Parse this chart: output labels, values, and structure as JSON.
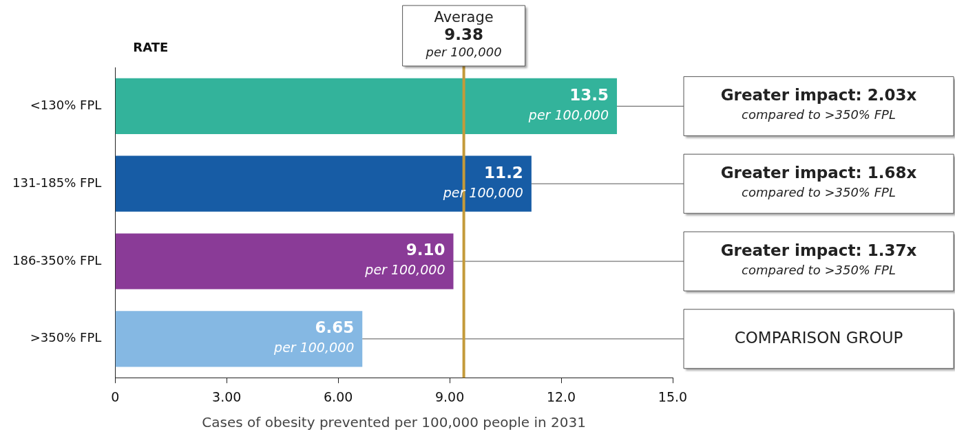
{
  "chart_data": {
    "type": "bar",
    "orientation": "horizontal",
    "ylabel": "RATE",
    "xlabel": "Cases of obesity prevented per 100,000 people in 2031",
    "categories": [
      "<130% FPL",
      "131-185% FPL",
      "186-350% FPL",
      ">350% FPL"
    ],
    "values": [
      13.5,
      11.2,
      9.1,
      6.65
    ],
    "colors": [
      "#33b39b",
      "#175ca5",
      "#8a3b97",
      "#85b8e3"
    ],
    "value_labels": [
      "13.5\nper 100,000",
      "11.2\nper 100,000",
      "9.10\nper 100,000",
      "6.65\nper 100,000"
    ],
    "xlim": [
      0,
      15
    ],
    "xticks": [
      0,
      {
        "value": 3,
        "label": "3.00"
      },
      {
        "value": 6,
        "label": "6.00"
      },
      {
        "value": 9,
        "label": "9.00"
      },
      {
        "value": 12,
        "label": "12.0"
      },
      {
        "value": 15,
        "label": "15.0"
      }
    ],
    "ref_lines": [
      {
        "axis": "x",
        "value": 9.38,
        "label": "Average\n9.38\nper 100,000",
        "color": "#c49a3a"
      }
    ],
    "annotations": [
      "Greater impact: 2.03x\ncompared to >350% FPL",
      "Greater impact: 1.68x\ncompared to >350% FPL",
      "Greater impact: 1.37x\ncompared to >350% FPL",
      "COMPARISON GROUP"
    ],
    "legend": false
  }
}
